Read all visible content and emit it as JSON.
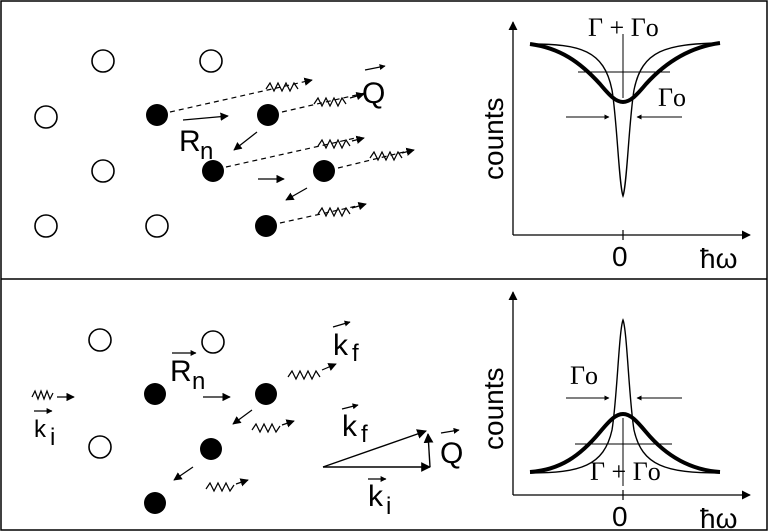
{
  "panels": [
    {
      "id": "top",
      "labels": {
        "Q": "Q",
        "R": "R",
        "R_sub": "n"
      },
      "spectrum": {
        "ylabel": "counts",
        "x_zero": "0",
        "x_label": "ħω",
        "width_wide": "Γ + Γo",
        "width_narrow": "Γo",
        "shape": "dip"
      }
    },
    {
      "id": "bottom",
      "labels": {
        "k_i_left": "k",
        "k_i_left_sub": "i",
        "R": "R",
        "R_sub": "n",
        "k_f_top": "k",
        "k_f_top_sub": "f",
        "k_f_vec": "k",
        "k_f_vec_sub": "f",
        "k_i_vec": "k",
        "k_i_vec_sub": "i",
        "Q": "Q"
      },
      "spectrum": {
        "ylabel": "counts",
        "x_zero": "0",
        "x_label": "ħω",
        "width_wide": "Γ + Γo",
        "width_narrow": "Γo",
        "shape": "peak"
      }
    }
  ]
}
